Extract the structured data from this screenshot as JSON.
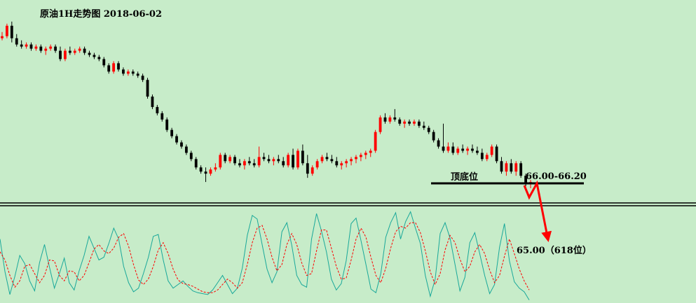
{
  "chart_data": [
    {
      "type": "candlestick",
      "title": "原油1H走势图 2018-06-02",
      "price_range": [
        63.5,
        72.3
      ],
      "candles": [
        [
          70.8,
          71.1,
          70.7,
          70.9
        ],
        [
          70.9,
          71.5,
          70.8,
          71.4
        ],
        [
          71.4,
          71.6,
          70.6,
          70.8
        ],
        [
          70.8,
          71.0,
          70.4,
          70.5
        ],
        [
          70.5,
          70.7,
          70.3,
          70.4
        ],
        [
          70.4,
          70.6,
          70.3,
          70.5
        ],
        [
          70.5,
          70.6,
          70.2,
          70.3
        ],
        [
          70.3,
          70.5,
          70.2,
          70.4
        ],
        [
          70.4,
          70.5,
          70.1,
          70.2
        ],
        [
          70.2,
          70.4,
          70.0,
          70.3
        ],
        [
          70.3,
          70.5,
          70.2,
          70.4
        ],
        [
          70.4,
          70.5,
          70.1,
          70.2
        ],
        [
          70.2,
          70.4,
          69.7,
          69.8
        ],
        [
          69.8,
          70.3,
          69.7,
          70.2
        ],
        [
          70.2,
          70.4,
          70.0,
          70.1
        ],
        [
          70.1,
          70.3,
          70.0,
          70.2
        ],
        [
          70.2,
          70.4,
          70.1,
          70.3
        ],
        [
          70.3,
          70.4,
          70.0,
          70.1
        ],
        [
          70.1,
          70.2,
          69.9,
          70.0
        ],
        [
          70.0,
          70.1,
          69.8,
          69.9
        ],
        [
          69.9,
          70.0,
          69.7,
          69.8
        ],
        [
          69.8,
          69.9,
          69.4,
          69.5
        ],
        [
          69.5,
          69.6,
          69.1,
          69.2
        ],
        [
          69.2,
          69.7,
          69.1,
          69.6
        ],
        [
          69.6,
          69.7,
          69.2,
          69.3
        ],
        [
          69.3,
          69.4,
          69.0,
          69.1
        ],
        [
          69.1,
          69.3,
          69.0,
          69.2
        ],
        [
          69.2,
          69.3,
          69.0,
          69.1
        ],
        [
          69.1,
          69.2,
          68.9,
          69.0
        ],
        [
          69.0,
          69.1,
          68.7,
          68.8
        ],
        [
          68.8,
          68.9,
          67.9,
          68.0
        ],
        [
          68.0,
          68.1,
          67.4,
          67.5
        ],
        [
          67.5,
          67.6,
          67.1,
          67.2
        ],
        [
          67.2,
          67.3,
          66.8,
          66.9
        ],
        [
          66.9,
          67.0,
          66.3,
          66.4
        ],
        [
          66.4,
          66.5,
          66.0,
          66.1
        ],
        [
          66.1,
          66.2,
          65.7,
          65.8
        ],
        [
          65.8,
          65.9,
          65.5,
          65.6
        ],
        [
          65.6,
          65.7,
          65.2,
          65.3
        ],
        [
          65.3,
          65.4,
          64.9,
          65.0
        ],
        [
          65.0,
          65.1,
          64.5,
          64.6
        ],
        [
          64.6,
          64.7,
          64.3,
          64.4
        ],
        [
          64.4,
          64.6,
          63.9,
          64.3
        ],
        [
          64.3,
          64.6,
          64.2,
          64.5
        ],
        [
          64.5,
          64.8,
          64.4,
          64.6
        ],
        [
          64.6,
          65.3,
          64.5,
          65.2
        ],
        [
          65.2,
          65.3,
          64.8,
          64.9
        ],
        [
          64.9,
          65.2,
          64.8,
          65.1
        ],
        [
          65.1,
          65.2,
          64.7,
          64.8
        ],
        [
          64.8,
          65.0,
          64.6,
          64.7
        ],
        [
          64.7,
          65.0,
          64.5,
          64.9
        ],
        [
          64.9,
          65.1,
          64.7,
          64.8
        ],
        [
          64.8,
          65.0,
          64.6,
          64.7
        ],
        [
          64.7,
          65.6,
          64.6,
          65.1
        ],
        [
          65.1,
          65.3,
          64.9,
          65.0
        ],
        [
          65.0,
          65.2,
          64.8,
          64.9
        ],
        [
          64.9,
          65.1,
          64.7,
          65.0
        ],
        [
          65.0,
          65.2,
          64.8,
          64.9
        ],
        [
          64.9,
          65.1,
          64.6,
          64.7
        ],
        [
          64.7,
          65.3,
          64.6,
          65.2
        ],
        [
          65.2,
          65.5,
          64.5,
          64.6
        ],
        [
          64.6,
          65.5,
          64.5,
          65.4
        ],
        [
          65.4,
          65.7,
          64.7,
          64.8
        ],
        [
          64.8,
          65.2,
          64.1,
          64.3
        ],
        [
          64.3,
          64.7,
          64.2,
          64.6
        ],
        [
          64.6,
          65.0,
          64.5,
          64.9
        ],
        [
          64.9,
          65.2,
          64.8,
          65.1
        ],
        [
          65.1,
          65.3,
          64.9,
          65.0
        ],
        [
          65.0,
          65.2,
          64.8,
          64.9
        ],
        [
          64.9,
          65.1,
          64.6,
          64.7
        ],
        [
          64.7,
          64.9,
          64.5,
          64.8
        ],
        [
          64.8,
          65.0,
          64.6,
          64.9
        ],
        [
          64.9,
          65.1,
          64.7,
          65.0
        ],
        [
          65.0,
          65.2,
          64.8,
          65.1
        ],
        [
          65.1,
          65.3,
          64.9,
          65.2
        ],
        [
          65.2,
          65.4,
          65.0,
          65.3
        ],
        [
          65.3,
          65.5,
          65.1,
          65.4
        ],
        [
          65.4,
          66.4,
          65.3,
          66.3
        ],
        [
          66.3,
          67.1,
          66.2,
          67.0
        ],
        [
          67.0,
          67.2,
          66.7,
          66.8
        ],
        [
          66.8,
          67.1,
          66.7,
          67.0
        ],
        [
          67.0,
          67.4,
          66.8,
          66.9
        ],
        [
          66.9,
          67.0,
          66.6,
          66.7
        ],
        [
          66.7,
          66.9,
          66.5,
          66.8
        ],
        [
          66.8,
          66.9,
          66.6,
          66.7
        ],
        [
          66.7,
          66.9,
          66.6,
          66.8
        ],
        [
          66.8,
          66.9,
          66.5,
          66.6
        ],
        [
          66.6,
          66.8,
          66.4,
          66.5
        ],
        [
          66.5,
          66.6,
          66.2,
          66.3
        ],
        [
          66.3,
          66.4,
          65.8,
          65.9
        ],
        [
          65.9,
          66.0,
          65.5,
          65.6
        ],
        [
          65.6,
          66.7,
          65.3,
          65.4
        ],
        [
          65.4,
          65.8,
          65.3,
          65.6
        ],
        [
          65.6,
          65.8,
          65.2,
          65.3
        ],
        [
          65.3,
          65.6,
          65.2,
          65.5
        ],
        [
          65.5,
          65.7,
          65.3,
          65.4
        ],
        [
          65.4,
          65.6,
          65.2,
          65.5
        ],
        [
          65.5,
          65.7,
          65.3,
          65.4
        ],
        [
          65.4,
          65.6,
          65.2,
          65.3
        ],
        [
          65.3,
          65.5,
          64.9,
          65.0
        ],
        [
          65.0,
          65.3,
          64.9,
          65.2
        ],
        [
          65.2,
          65.7,
          65.1,
          65.6
        ],
        [
          65.6,
          65.7,
          64.8,
          64.9
        ],
        [
          64.9,
          65.1,
          64.3,
          64.4
        ],
        [
          64.4,
          64.9,
          64.2,
          64.8
        ],
        [
          64.8,
          65.0,
          64.3,
          64.4
        ],
        [
          64.4,
          64.9,
          64.2,
          64.8
        ],
        [
          64.8,
          64.9,
          64.1,
          64.2
        ],
        [
          64.2,
          64.3,
          63.7,
          63.8
        ],
        [
          63.8,
          64.0,
          63.6,
          63.9
        ]
      ],
      "level_label": "顶底位",
      "level_range_label": "66.00-66.20",
      "target_label": "65.00（618位）",
      "colors": {
        "up": "#ff0000",
        "down": "#000000",
        "level_line": "#000000",
        "arrow": "#ff0000",
        "background": "#c7ecc9"
      }
    },
    {
      "type": "line",
      "series": [
        {
          "color": "#1aa89a",
          "style": "solid",
          "values": [
            68,
            32,
            7,
            27,
            50,
            41,
            22,
            11,
            42,
            62,
            37,
            14,
            30,
            47,
            20,
            12,
            33,
            50,
            71,
            58,
            45,
            48,
            63,
            80,
            68,
            38,
            20,
            10,
            14,
            30,
            48,
            71,
            73,
            45,
            22,
            14,
            18,
            22,
            16,
            11,
            9,
            8,
            7,
            12,
            20,
            28,
            18,
            8,
            14,
            36,
            72,
            94,
            90,
            62,
            35,
            20,
            32,
            76,
            86,
            61,
            28,
            18,
            15,
            68,
            96,
            77,
            54,
            24,
            12,
            19,
            44,
            85,
            91,
            66,
            40,
            13,
            9,
            30,
            70,
            86,
            97,
            68,
            87,
            98,
            80,
            63,
            28,
            5,
            24,
            74,
            86,
            69,
            40,
            11,
            26,
            64,
            75,
            52,
            28,
            8,
            18,
            59,
            85,
            44,
            21,
            14,
            10,
            1
          ]
        },
        {
          "color": "#ff0000",
          "style": "dashed",
          "values": [
            54,
            45,
            28,
            15,
            22,
            38,
            40,
            30,
            20,
            28,
            45,
            44,
            28,
            22,
            33,
            32,
            22,
            28,
            42,
            57,
            62,
            55,
            52,
            58,
            70,
            74,
            60,
            40,
            23,
            18,
            24,
            38,
            56,
            64,
            52,
            35,
            23,
            19,
            18,
            16,
            13,
            10,
            9,
            9,
            12,
            18,
            24,
            20,
            14,
            20,
            40,
            64,
            80,
            83,
            68,
            48,
            33,
            40,
            62,
            74,
            62,
            42,
            28,
            30,
            55,
            78,
            78,
            58,
            38,
            24,
            25,
            45,
            68,
            80,
            70,
            48,
            28,
            20,
            36,
            58,
            76,
            82,
            80,
            86,
            86,
            75,
            55,
            32,
            18,
            30,
            56,
            72,
            64,
            46,
            32,
            38,
            54,
            62,
            52,
            34,
            20,
            28,
            49,
            68,
            52,
            35,
            22,
            12
          ]
        }
      ],
      "ylim": [
        0,
        100
      ]
    }
  ]
}
